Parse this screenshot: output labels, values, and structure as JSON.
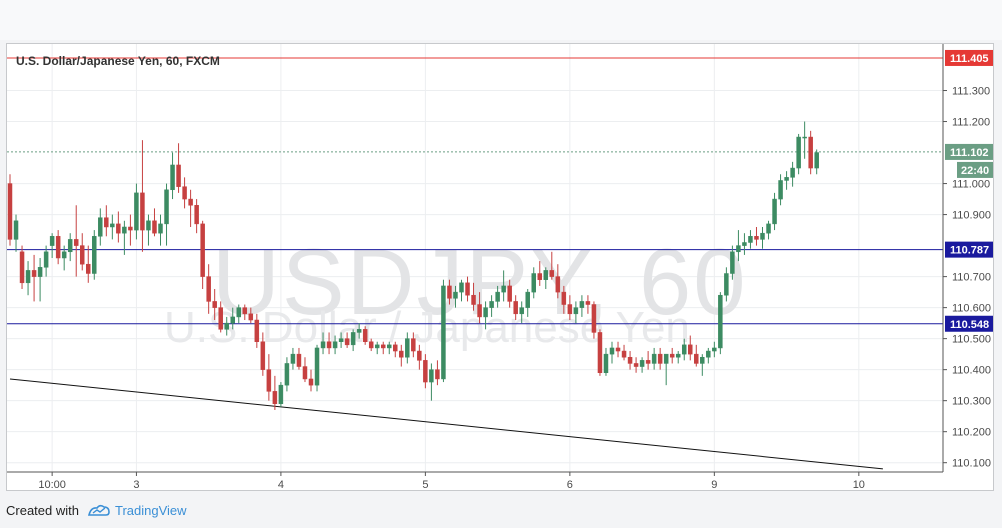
{
  "chart_data": {
    "type": "candlestick",
    "title": "U.S. Dollar/Japanese Yen, 60, FXCM",
    "watermark": "USDJPY, 60",
    "watermark_sub": "U.S. Dollar / Japanese Yen",
    "ylim": [
      110.07,
      111.45
    ],
    "y_ticks": [
      "111.300",
      "111.200",
      "111.000",
      "110.900",
      "110.700",
      "110.600",
      "110.500",
      "110.400",
      "110.300",
      "110.200",
      "110.100"
    ],
    "x_ticks": [
      {
        "label": "10:00",
        "bar": 7
      },
      {
        "label": "3",
        "bar": 21
      },
      {
        "label": "4",
        "bar": 45
      },
      {
        "label": "5",
        "bar": 69
      },
      {
        "label": "6",
        "bar": 93
      },
      {
        "label": "9",
        "bar": 117
      },
      {
        "label": "10",
        "bar": 141
      }
    ],
    "bar_count": 152,
    "candles": [
      [
        111.0,
        111.03,
        110.8,
        110.82
      ],
      [
        110.82,
        110.9,
        110.78,
        110.88
      ],
      [
        110.78,
        110.8,
        110.66,
        110.68
      ],
      [
        110.68,
        110.75,
        110.64,
        110.72
      ],
      [
        110.72,
        110.77,
        110.62,
        110.7
      ],
      [
        110.7,
        110.76,
        110.62,
        110.73
      ],
      [
        110.73,
        110.8,
        110.7,
        110.78
      ],
      [
        110.8,
        110.84,
        110.76,
        110.83
      ],
      [
        110.83,
        110.85,
        110.74,
        110.76
      ],
      [
        110.76,
        110.8,
        110.72,
        110.78
      ],
      [
        110.78,
        110.84,
        110.75,
        110.82
      ],
      [
        110.82,
        110.93,
        110.7,
        110.8
      ],
      [
        110.8,
        110.84,
        110.72,
        110.74
      ],
      [
        110.74,
        110.8,
        110.68,
        110.71
      ],
      [
        110.71,
        110.85,
        110.69,
        110.83
      ],
      [
        110.83,
        110.92,
        110.8,
        110.89
      ],
      [
        110.89,
        110.93,
        110.83,
        110.86
      ],
      [
        110.86,
        110.9,
        110.82,
        110.87
      ],
      [
        110.87,
        110.91,
        110.81,
        110.84
      ],
      [
        110.84,
        110.88,
        110.77,
        110.86
      ],
      [
        110.86,
        110.9,
        110.8,
        110.85
      ],
      [
        110.85,
        111.0,
        110.82,
        110.97
      ],
      [
        110.97,
        111.14,
        110.78,
        110.85
      ],
      [
        110.85,
        110.9,
        110.8,
        110.88
      ],
      [
        110.88,
        110.92,
        110.83,
        110.84
      ],
      [
        110.84,
        110.9,
        110.8,
        110.87
      ],
      [
        110.87,
        111.0,
        110.8,
        110.98
      ],
      [
        110.98,
        111.1,
        110.95,
        111.06
      ],
      [
        111.06,
        111.13,
        110.97,
        110.99
      ],
      [
        110.99,
        111.02,
        110.92,
        110.95
      ],
      [
        110.95,
        110.98,
        110.86,
        110.93
      ],
      [
        110.93,
        110.95,
        110.84,
        110.87
      ],
      [
        110.87,
        110.88,
        110.66,
        110.7
      ],
      [
        110.7,
        110.74,
        110.58,
        110.62
      ],
      [
        110.62,
        110.66,
        110.56,
        110.6
      ],
      [
        110.6,
        110.62,
        110.52,
        110.53
      ],
      [
        110.53,
        110.57,
        110.51,
        110.55
      ],
      [
        110.55,
        110.6,
        110.53,
        110.57
      ],
      [
        110.57,
        110.61,
        110.55,
        110.6
      ],
      [
        110.6,
        110.61,
        110.56,
        110.58
      ],
      [
        110.58,
        110.6,
        110.55,
        110.56
      ],
      [
        110.56,
        110.58,
        110.47,
        110.49
      ],
      [
        110.49,
        110.52,
        110.38,
        110.4
      ],
      [
        110.4,
        110.45,
        110.3,
        110.33
      ],
      [
        110.33,
        110.38,
        110.27,
        110.29
      ],
      [
        110.29,
        110.36,
        110.28,
        110.35
      ],
      [
        110.35,
        110.44,
        110.33,
        110.42
      ],
      [
        110.42,
        110.47,
        110.4,
        110.45
      ],
      [
        110.45,
        110.47,
        110.4,
        110.41
      ],
      [
        110.41,
        110.44,
        110.36,
        110.37
      ],
      [
        110.37,
        110.4,
        110.33,
        110.35
      ],
      [
        110.35,
        110.48,
        110.33,
        110.47
      ],
      [
        110.47,
        110.52,
        110.45,
        110.49
      ],
      [
        110.49,
        110.52,
        110.45,
        110.47
      ],
      [
        110.47,
        110.51,
        110.45,
        110.49
      ],
      [
        110.49,
        110.52,
        110.47,
        110.5
      ],
      [
        110.5,
        110.52,
        110.47,
        110.48
      ],
      [
        110.48,
        110.53,
        110.46,
        110.52
      ],
      [
        110.52,
        110.55,
        110.5,
        110.53
      ],
      [
        110.53,
        110.54,
        110.48,
        110.49
      ],
      [
        110.49,
        110.5,
        110.46,
        110.47
      ],
      [
        110.47,
        110.49,
        110.45,
        110.48
      ],
      [
        110.48,
        110.49,
        110.45,
        110.47
      ],
      [
        110.47,
        110.49,
        110.45,
        110.48
      ],
      [
        110.48,
        110.49,
        110.44,
        110.46
      ],
      [
        110.46,
        110.48,
        110.41,
        110.44
      ],
      [
        110.44,
        110.52,
        110.42,
        110.5
      ],
      [
        110.5,
        110.52,
        110.44,
        110.46
      ],
      [
        110.46,
        110.48,
        110.4,
        110.43
      ],
      [
        110.43,
        110.45,
        110.34,
        110.36
      ],
      [
        110.36,
        110.42,
        110.3,
        110.4
      ],
      [
        110.4,
        110.43,
        110.35,
        110.37
      ],
      [
        110.37,
        110.69,
        110.36,
        110.67
      ],
      [
        110.67,
        110.69,
        110.61,
        110.63
      ],
      [
        110.63,
        110.67,
        110.6,
        110.65
      ],
      [
        110.65,
        110.69,
        110.62,
        110.68
      ],
      [
        110.68,
        110.7,
        110.62,
        110.64
      ],
      [
        110.64,
        110.68,
        110.59,
        110.61
      ],
      [
        110.61,
        110.65,
        110.55,
        110.57
      ],
      [
        110.57,
        110.62,
        110.53,
        110.6
      ],
      [
        110.6,
        110.64,
        110.57,
        110.62
      ],
      [
        110.62,
        110.67,
        110.6,
        110.65
      ],
      [
        110.65,
        110.72,
        110.62,
        110.67
      ],
      [
        110.67,
        110.69,
        110.6,
        110.62
      ],
      [
        110.62,
        110.64,
        110.56,
        110.58
      ],
      [
        110.58,
        110.62,
        110.55,
        110.6
      ],
      [
        110.6,
        110.66,
        110.57,
        110.65
      ],
      [
        110.65,
        110.73,
        110.63,
        110.71
      ],
      [
        110.71,
        110.75,
        110.67,
        110.69
      ],
      [
        110.69,
        110.73,
        110.66,
        110.72
      ],
      [
        110.72,
        110.78,
        110.69,
        110.7
      ],
      [
        110.7,
        110.74,
        110.63,
        110.65
      ],
      [
        110.65,
        110.67,
        110.58,
        110.61
      ],
      [
        110.61,
        110.64,
        110.56,
        110.58
      ],
      [
        110.58,
        110.62,
        110.55,
        110.6
      ],
      [
        110.6,
        110.64,
        110.57,
        110.62
      ],
      [
        110.62,
        110.64,
        110.58,
        110.61
      ],
      [
        110.61,
        110.62,
        110.5,
        110.52
      ],
      [
        110.52,
        110.53,
        110.38,
        110.39
      ],
      [
        110.39,
        110.47,
        110.38,
        110.45
      ],
      [
        110.45,
        110.49,
        110.42,
        110.47
      ],
      [
        110.47,
        110.49,
        110.44,
        110.46
      ],
      [
        110.46,
        110.48,
        110.43,
        110.44
      ],
      [
        110.44,
        110.46,
        110.4,
        110.42
      ],
      [
        110.42,
        110.44,
        110.39,
        110.41
      ],
      [
        110.41,
        110.44,
        110.39,
        110.43
      ],
      [
        110.43,
        110.46,
        110.4,
        110.42
      ],
      [
        110.42,
        110.47,
        110.4,
        110.45
      ],
      [
        110.45,
        110.47,
        110.4,
        110.42
      ],
      [
        110.42,
        110.44,
        110.35,
        110.45
      ],
      [
        110.45,
        110.47,
        110.42,
        110.44
      ],
      [
        110.44,
        110.46,
        110.42,
        110.45
      ],
      [
        110.45,
        110.5,
        110.43,
        110.48
      ],
      [
        110.48,
        110.51,
        110.43,
        110.45
      ],
      [
        110.45,
        110.48,
        110.41,
        110.42
      ],
      [
        110.42,
        110.45,
        110.38,
        110.44
      ],
      [
        110.44,
        110.47,
        110.42,
        110.46
      ],
      [
        110.46,
        110.49,
        110.44,
        110.47
      ],
      [
        110.47,
        110.65,
        110.45,
        110.64
      ],
      [
        110.64,
        110.73,
        110.62,
        110.71
      ],
      [
        110.71,
        110.8,
        110.69,
        110.78
      ],
      [
        110.78,
        110.85,
        110.75,
        110.8
      ],
      [
        110.8,
        110.84,
        110.77,
        110.81
      ],
      [
        110.81,
        110.85,
        110.79,
        110.83
      ],
      [
        110.83,
        110.86,
        110.8,
        110.82
      ],
      [
        110.82,
        110.86,
        110.79,
        110.84
      ],
      [
        110.84,
        110.88,
        110.82,
        110.87
      ],
      [
        110.87,
        110.97,
        110.85,
        110.95
      ],
      [
        110.95,
        111.03,
        110.93,
        111.01
      ],
      [
        111.01,
        111.04,
        110.98,
        111.02
      ],
      [
        111.02,
        111.07,
        110.99,
        111.05
      ],
      [
        111.05,
        111.16,
        111.03,
        111.15
      ],
      [
        111.15,
        111.2,
        111.08,
        111.15
      ],
      [
        111.15,
        111.17,
        111.03,
        111.05
      ],
      [
        111.05,
        111.11,
        111.03,
        111.1
      ]
    ],
    "levels": [
      {
        "value": 111.405,
        "label": "111.405",
        "color": "#e53935"
      },
      {
        "value": 110.787,
        "label": "110.787",
        "color": "#1a1a9e"
      },
      {
        "value": 110.548,
        "label": "110.548",
        "color": "#1a1a9e"
      }
    ],
    "last_price": {
      "value": 111.102,
      "label": "111.102",
      "color": "#6b9e84"
    },
    "countdown": "22:40",
    "trendline": {
      "start": [
        0,
        110.37
      ],
      "end": [
        145,
        110.08
      ],
      "color": "#111111"
    },
    "colors": {
      "up": "#3c8b62",
      "down": "#c64040",
      "grid": "#eceef0",
      "axis": "#555555"
    }
  },
  "footer": {
    "created_with": "Created with",
    "brand": "TradingView"
  }
}
